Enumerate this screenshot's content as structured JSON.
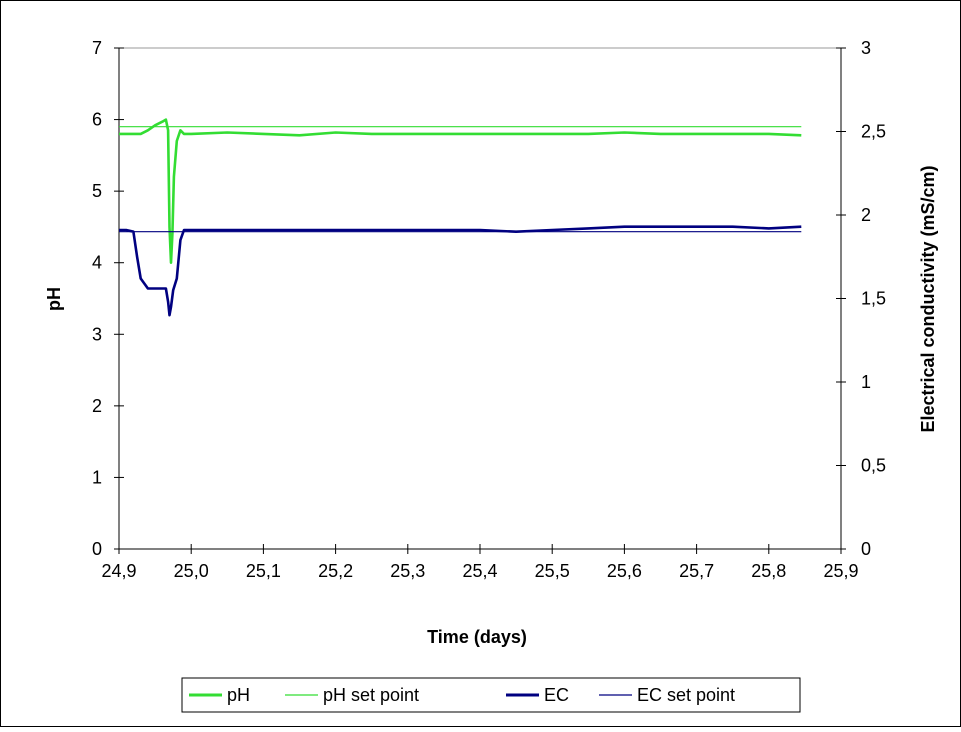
{
  "chart_data": {
    "type": "line",
    "title": "",
    "xlabel": "Time (days)",
    "ylabel": "pH",
    "y2label": "Electrical conductivity (mS/cm)",
    "xlim": [
      24.9,
      25.9
    ],
    "ylim": [
      0,
      7
    ],
    "y2lim": [
      0,
      3
    ],
    "x_ticks": [
      "24,9",
      "25,0",
      "25,1",
      "25,2",
      "25,3",
      "25,4",
      "25,5",
      "25,6",
      "25,7",
      "25,8",
      "25,9"
    ],
    "y_ticks": [
      "0",
      "1",
      "2",
      "3",
      "4",
      "5",
      "6",
      "7"
    ],
    "y2_ticks": [
      "0",
      "0,5",
      "1",
      "1,5",
      "2",
      "2,5",
      "3"
    ],
    "grid": false,
    "legend_position": "bottom",
    "series": [
      {
        "name": "pH",
        "axis": "left",
        "color": "#33dd33",
        "x": [
          24.9,
          24.91,
          24.92,
          24.93,
          24.94,
          24.95,
          24.96,
          24.965,
          24.968,
          24.97,
          24.972,
          24.974,
          24.976,
          24.98,
          24.985,
          24.99,
          25.0,
          25.05,
          25.1,
          25.15,
          25.2,
          25.25,
          25.3,
          25.35,
          25.4,
          25.45,
          25.5,
          25.55,
          25.6,
          25.65,
          25.7,
          25.75,
          25.8,
          25.845
        ],
        "y": [
          5.8,
          5.8,
          5.8,
          5.8,
          5.85,
          5.92,
          5.97,
          6.0,
          5.85,
          4.5,
          4.0,
          4.4,
          5.2,
          5.7,
          5.85,
          5.8,
          5.8,
          5.82,
          5.8,
          5.78,
          5.82,
          5.8,
          5.8,
          5.8,
          5.8,
          5.8,
          5.8,
          5.8,
          5.82,
          5.8,
          5.8,
          5.8,
          5.8,
          5.78
        ]
      },
      {
        "name": "pH set point",
        "axis": "left",
        "color": "#33dd33",
        "x": [
          24.9,
          25.845
        ],
        "y": [
          5.9,
          5.9
        ]
      },
      {
        "name": "EC",
        "axis": "right",
        "color": "#000080",
        "x": [
          24.9,
          24.91,
          24.92,
          24.925,
          24.93,
          24.94,
          24.95,
          24.96,
          24.965,
          24.968,
          24.97,
          24.972,
          24.975,
          24.98,
          24.985,
          24.99,
          25.0,
          25.1,
          25.2,
          25.3,
          25.4,
          25.45,
          25.5,
          25.55,
          25.6,
          25.65,
          25.7,
          25.75,
          25.8,
          25.845
        ],
        "y": [
          1.91,
          1.91,
          1.9,
          1.75,
          1.62,
          1.56,
          1.56,
          1.56,
          1.56,
          1.48,
          1.4,
          1.45,
          1.55,
          1.62,
          1.85,
          1.91,
          1.91,
          1.91,
          1.91,
          1.91,
          1.91,
          1.9,
          1.91,
          1.92,
          1.93,
          1.93,
          1.93,
          1.93,
          1.92,
          1.93
        ]
      },
      {
        "name": "EC set point",
        "axis": "right",
        "color": "#000080",
        "x": [
          24.9,
          25.845
        ],
        "y": [
          1.9,
          1.9
        ]
      }
    ]
  }
}
